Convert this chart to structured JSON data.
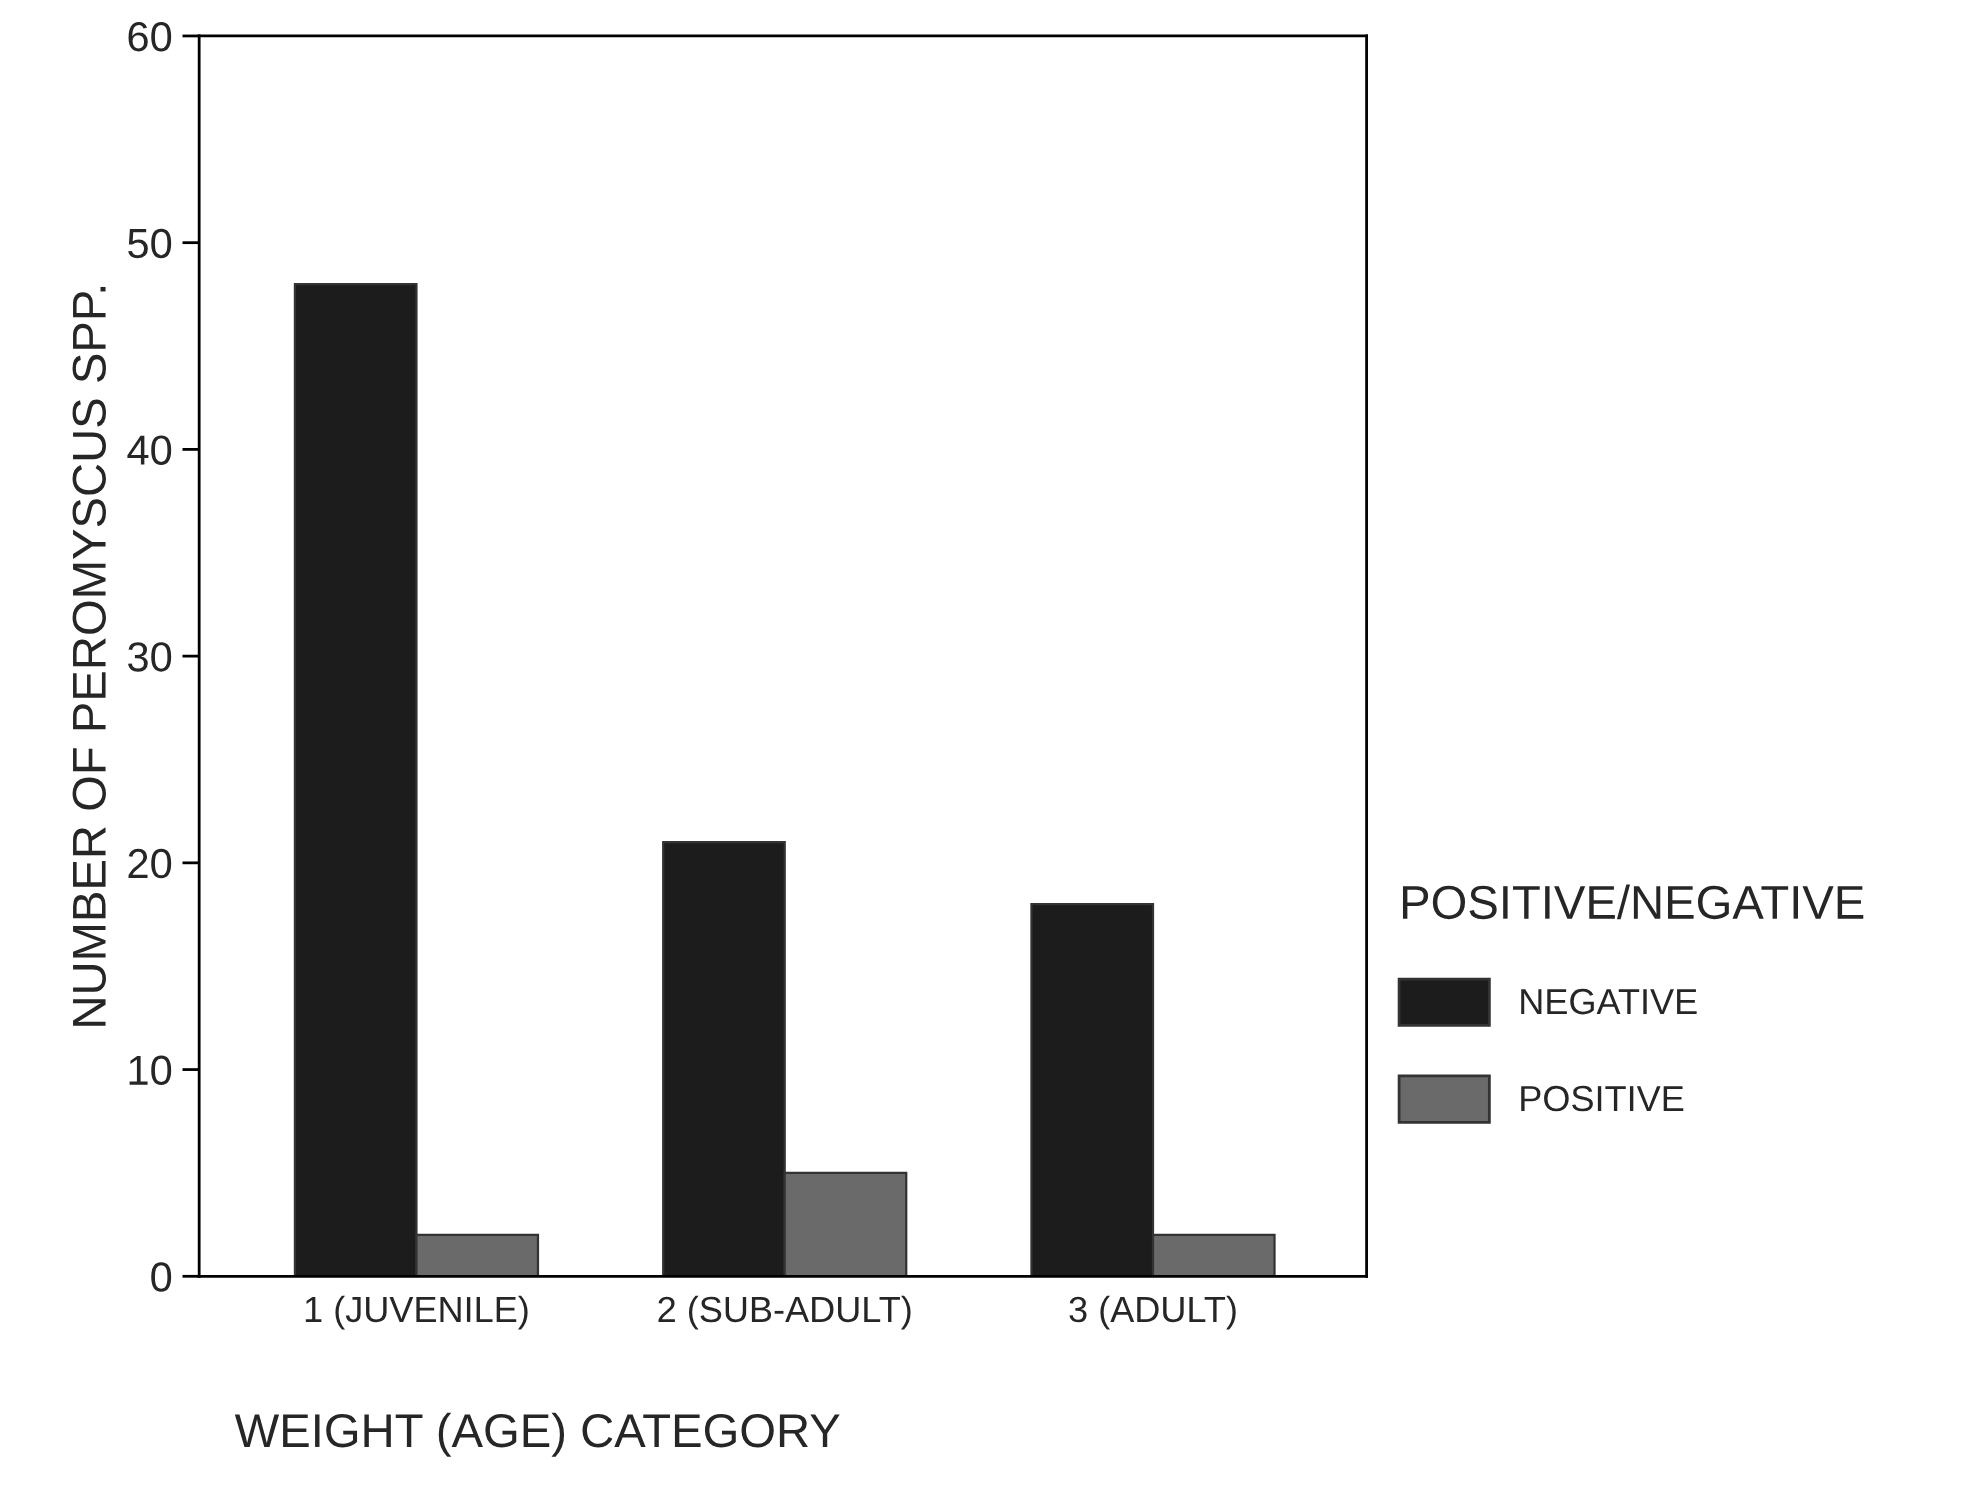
{
  "chart_data": {
    "type": "bar",
    "categories": [
      "1 (JUVENILE)",
      "2 (SUB-ADULT)",
      "3 (ADULT)"
    ],
    "series": [
      {
        "name": "NEGATIVE",
        "color": "#1c1c1c",
        "values": [
          48,
          21,
          18
        ]
      },
      {
        "name": "POSITIVE",
        "color": "#6a6a6a",
        "values": [
          2,
          5,
          2
        ]
      }
    ],
    "xlabel": "WEIGHT (AGE) CATEGORY",
    "ylabel": "NUMBER OF PEROMYSCUS SPP.",
    "legend_title": "POSITIVE/NEGATIVE",
    "legend": "right",
    "ylim": [
      0,
      60
    ],
    "yticks": [
      0,
      10,
      20,
      30,
      40,
      50,
      60
    ],
    "grid": false
  }
}
